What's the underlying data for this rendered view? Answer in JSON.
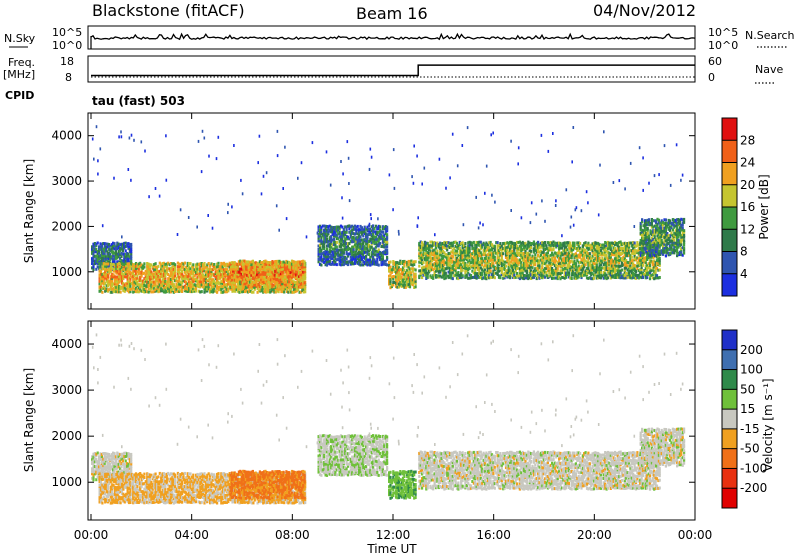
{
  "header": {
    "station": "Blackstone (fitACF)",
    "beam": "Beam 16",
    "date": "04/Nov/2012"
  },
  "ctrl": {
    "nsky_label": "N.Sky",
    "nsearch_label": "N.Search",
    "freq_label": "Freq.",
    "freq_unit": "[MHz]",
    "nave_label": "Nave",
    "cpid_label": "CPID",
    "cpid_value": "tau (fast) 503",
    "noise_ticks": [
      "10^5",
      "10^0"
    ],
    "freq_ticks": [
      "18",
      "8"
    ],
    "nave_ticks": [
      "60",
      "0"
    ]
  },
  "axes": {
    "y_label": "Slant Range [km]",
    "y_ticks": [
      "4000",
      "3000",
      "2000",
      "1000"
    ],
    "x_ticks": [
      "00:00",
      "04:00",
      "08:00",
      "12:00",
      "16:00",
      "20:00",
      "00:00"
    ],
    "x_label": "Time UT"
  },
  "colorbars": {
    "power": {
      "label": "Power [dB]",
      "ticks": [
        "28",
        "24",
        "20",
        "16",
        "12",
        "8",
        "4"
      ],
      "colors": [
        "#1c2fe0",
        "#2f55b0",
        "#2f7a4a",
        "#3f9a3f",
        "#c5c530",
        "#f0a020",
        "#f06018",
        "#e01010"
      ]
    },
    "velocity": {
      "label": "Velocity [m s⁻¹]",
      "ticks": [
        "200",
        "100",
        "50",
        "15",
        "-15",
        "-50",
        "-100",
        "-200"
      ],
      "colors": [
        "#2030c8",
        "#3f6fb0",
        "#2f8a4a",
        "#6fc03a",
        "#c8c8c0",
        "#f0a020",
        "#f07018",
        "#e83010",
        "#e00000"
      ]
    }
  },
  "chart_data": {
    "type": "heatmap",
    "x": [
      "00:00",
      "04:00",
      "08:00",
      "12:00",
      "16:00",
      "20:00",
      "00:00"
    ],
    "y_range_km": [
      180,
      4500
    ],
    "freq_MHz": [
      {
        "from": "00:00",
        "to": "13:00",
        "value": 10.5
      },
      {
        "from": "13:00",
        "to": "24:00",
        "value": 14.5
      }
    ],
    "echo_bands": [
      {
        "from_h": 0.0,
        "to_h": 1.6,
        "range_km": [
          1100,
          1700
        ],
        "power_db": 10,
        "velocity_ms": 0
      },
      {
        "from_h": 0.3,
        "to_h": 8.5,
        "range_km": [
          600,
          1250
        ],
        "power_db": 22,
        "velocity_ms": -20
      },
      {
        "from_h": 5.5,
        "to_h": 8.5,
        "range_km": [
          700,
          1300
        ],
        "power_db": 24,
        "velocity_ms": -60
      },
      {
        "from_h": 9.0,
        "to_h": 11.8,
        "range_km": [
          1200,
          2100
        ],
        "power_db": 12,
        "velocity_ms": 10
      },
      {
        "from_h": 11.8,
        "to_h": 12.9,
        "range_km": [
          700,
          1300
        ],
        "power_db": 20,
        "velocity_ms": 40
      },
      {
        "from_h": 13.0,
        "to_h": 22.6,
        "range_km": [
          900,
          1700
        ],
        "power_db": 18,
        "velocity_ms": 0
      },
      {
        "from_h": 21.8,
        "to_h": 23.6,
        "range_km": [
          1400,
          2250
        ],
        "power_db": 14,
        "velocity_ms": 0
      }
    ]
  }
}
